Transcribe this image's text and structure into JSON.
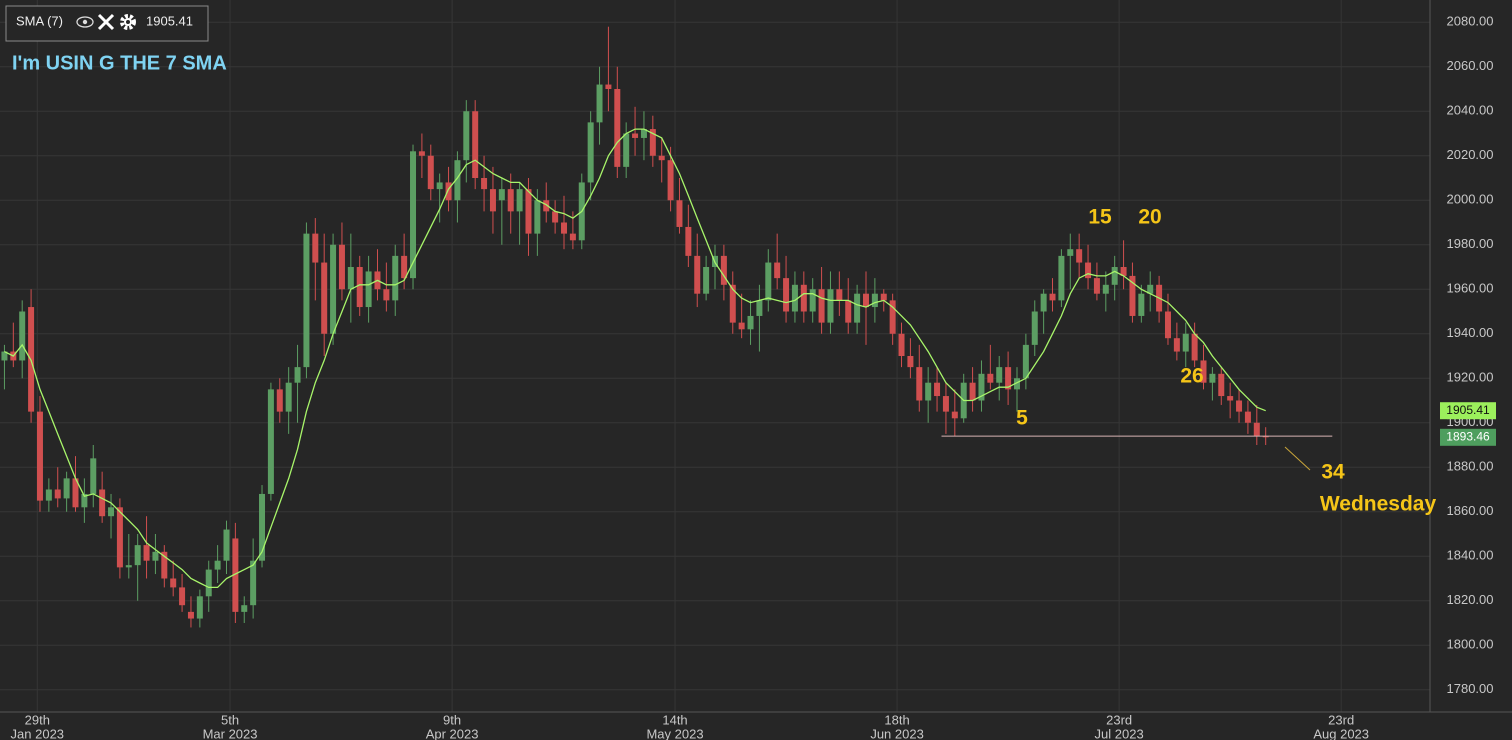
{
  "chart_data": {
    "type": "candlestick",
    "title": "I'm USIN G THE 7 SMA",
    "indicator": {
      "name": "SMA (7)",
      "value": 1905.41,
      "color": "#a8f56a",
      "values": [
        1932,
        1930,
        1935,
        1928,
        1915,
        1905,
        1895,
        1885,
        1875,
        1867,
        1868,
        1866,
        1864,
        1860,
        1856,
        1852,
        1846,
        1843,
        1840,
        1837,
        1834,
        1830,
        1828,
        1826,
        1826,
        1830,
        1832,
        1834,
        1836,
        1842,
        1853,
        1864,
        1875,
        1888,
        1905,
        1918,
        1928,
        1940,
        1950,
        1960,
        1962,
        1962,
        1964,
        1962,
        1962,
        1964,
        1972,
        1980,
        1988,
        1996,
        2005,
        2010,
        2016,
        2018,
        2015,
        2012,
        2010,
        2008,
        2008,
        2004,
        2000,
        1998,
        1995,
        1994,
        1992,
        1995,
        2002,
        2010,
        2020,
        2026,
        2030,
        2032,
        2032,
        2030,
        2028,
        2020,
        2012,
        2002,
        1992,
        1982,
        1972,
        1966,
        1960,
        1956,
        1954,
        1955,
        1956,
        1955,
        1954,
        1955,
        1958,
        1958,
        1956,
        1955,
        1955,
        1955,
        1953,
        1952,
        1954,
        1955,
        1952,
        1948,
        1944,
        1938,
        1932,
        1925,
        1918,
        1914,
        1910,
        1910,
        1912,
        1914,
        1916,
        1916,
        1918,
        1920,
        1926,
        1932,
        1940,
        1948,
        1958,
        1965,
        1967,
        1966,
        1966,
        1968,
        1966,
        1963,
        1960,
        1958,
        1956,
        1954,
        1950,
        1946,
        1940,
        1936,
        1930,
        1925,
        1920,
        1915,
        1911,
        1907,
        1905.41
      ]
    },
    "last_price": 1893.46,
    "support_level": 1894,
    "up_color": "#5c9e63",
    "down_color": "#d04f4f",
    "ohlc": [
      [
        1928,
        1935,
        1915,
        1932
      ],
      [
        1932,
        1945,
        1925,
        1928
      ],
      [
        1928,
        1955,
        1920,
        1950
      ],
      [
        1952,
        1960,
        1900,
        1905
      ],
      [
        1905,
        1912,
        1860,
        1865
      ],
      [
        1865,
        1875,
        1860,
        1870
      ],
      [
        1870,
        1880,
        1862,
        1866
      ],
      [
        1866,
        1878,
        1860,
        1875
      ],
      [
        1875,
        1885,
        1860,
        1862
      ],
      [
        1862,
        1875,
        1855,
        1868
      ],
      [
        1868,
        1890,
        1862,
        1884
      ],
      [
        1870,
        1878,
        1855,
        1858
      ],
      [
        1858,
        1868,
        1848,
        1862
      ],
      [
        1862,
        1866,
        1830,
        1835
      ],
      [
        1835,
        1850,
        1830,
        1836
      ],
      [
        1836,
        1850,
        1820,
        1845
      ],
      [
        1845,
        1858,
        1830,
        1838
      ],
      [
        1838,
        1850,
        1832,
        1842
      ],
      [
        1842,
        1845,
        1826,
        1830
      ],
      [
        1830,
        1838,
        1822,
        1826
      ],
      [
        1826,
        1832,
        1815,
        1818
      ],
      [
        1815,
        1822,
        1808,
        1812
      ],
      [
        1812,
        1825,
        1808,
        1822
      ],
      [
        1822,
        1838,
        1815,
        1834
      ],
      [
        1834,
        1845,
        1828,
        1838
      ],
      [
        1838,
        1856,
        1832,
        1852
      ],
      [
        1848,
        1855,
        1810,
        1815
      ],
      [
        1815,
        1822,
        1810,
        1818
      ],
      [
        1818,
        1848,
        1812,
        1838
      ],
      [
        1838,
        1872,
        1835,
        1868
      ],
      [
        1868,
        1918,
        1865,
        1915
      ],
      [
        1915,
        1920,
        1900,
        1905
      ],
      [
        1905,
        1925,
        1895,
        1918
      ],
      [
        1918,
        1935,
        1900,
        1925
      ],
      [
        1925,
        1990,
        1920,
        1985
      ],
      [
        1985,
        1992,
        1955,
        1972
      ],
      [
        1972,
        1985,
        1930,
        1940
      ],
      [
        1940,
        1985,
        1935,
        1980
      ],
      [
        1980,
        1990,
        1955,
        1960
      ],
      [
        1960,
        1985,
        1945,
        1970
      ],
      [
        1970,
        1975,
        1948,
        1952
      ],
      [
        1952,
        1975,
        1945,
        1968
      ],
      [
        1968,
        1978,
        1955,
        1960
      ],
      [
        1960,
        1972,
        1950,
        1955
      ],
      [
        1955,
        1980,
        1948,
        1975
      ],
      [
        1975,
        1985,
        1960,
        1965
      ],
      [
        1965,
        2025,
        1960,
        2022
      ],
      [
        2022,
        2030,
        2010,
        2020
      ],
      [
        2020,
        2025,
        2000,
        2005
      ],
      [
        2005,
        2012,
        1990,
        2008
      ],
      [
        2008,
        2015,
        1995,
        2000
      ],
      [
        2000,
        2022,
        1990,
        2018
      ],
      [
        2018,
        2045,
        2008,
        2040
      ],
      [
        2040,
        2045,
        2005,
        2010
      ],
      [
        2010,
        2020,
        1995,
        2005
      ],
      [
        2005,
        2015,
        1985,
        1995
      ],
      [
        2000,
        2010,
        1980,
        2005
      ],
      [
        2005,
        2012,
        1985,
        1995
      ],
      [
        1995,
        2008,
        1980,
        2005
      ],
      [
        2005,
        2010,
        1975,
        1985
      ],
      [
        1985,
        2005,
        1975,
        2000
      ],
      [
        2000,
        2008,
        1990,
        1995
      ],
      [
        1995,
        2000,
        1985,
        1990
      ],
      [
        1990,
        2002,
        1978,
        1985
      ],
      [
        1985,
        1995,
        1978,
        1982
      ],
      [
        1982,
        2012,
        1978,
        2008
      ],
      [
        2008,
        2040,
        2000,
        2035
      ],
      [
        2035,
        2060,
        2025,
        2052
      ],
      [
        2052,
        2078,
        2040,
        2050
      ],
      [
        2050,
        2060,
        2010,
        2015
      ],
      [
        2015,
        2035,
        2010,
        2030
      ],
      [
        2030,
        2042,
        2020,
        2028
      ],
      [
        2028,
        2040,
        2018,
        2032
      ],
      [
        2032,
        2038,
        2015,
        2020
      ],
      [
        2020,
        2028,
        2008,
        2018
      ],
      [
        2018,
        2024,
        1995,
        2000
      ],
      [
        2000,
        2010,
        1985,
        1988
      ],
      [
        1988,
        1998,
        1970,
        1975
      ],
      [
        1975,
        1985,
        1952,
        1958
      ],
      [
        1958,
        1975,
        1955,
        1970
      ],
      [
        1970,
        1980,
        1960,
        1975
      ],
      [
        1975,
        1980,
        1955,
        1962
      ],
      [
        1962,
        1968,
        1940,
        1945
      ],
      [
        1945,
        1958,
        1938,
        1942
      ],
      [
        1942,
        1955,
        1935,
        1948
      ],
      [
        1948,
        1962,
        1932,
        1955
      ],
      [
        1955,
        1978,
        1950,
        1972
      ],
      [
        1972,
        1985,
        1960,
        1965
      ],
      [
        1965,
        1975,
        1945,
        1950
      ],
      [
        1950,
        1968,
        1945,
        1962
      ],
      [
        1962,
        1968,
        1945,
        1950
      ],
      [
        1950,
        1965,
        1945,
        1960
      ],
      [
        1960,
        1970,
        1940,
        1945
      ],
      [
        1945,
        1968,
        1940,
        1960
      ],
      [
        1960,
        1968,
        1948,
        1955
      ],
      [
        1955,
        1965,
        1940,
        1945
      ],
      [
        1945,
        1962,
        1940,
        1958
      ],
      [
        1958,
        1968,
        1935,
        1952
      ],
      [
        1952,
        1965,
        1945,
        1958
      ],
      [
        1958,
        1960,
        1950,
        1955
      ],
      [
        1955,
        1958,
        1935,
        1940
      ],
      [
        1940,
        1945,
        1925,
        1930
      ],
      [
        1930,
        1938,
        1920,
        1925
      ],
      [
        1925,
        1935,
        1905,
        1910
      ],
      [
        1910,
        1925,
        1900,
        1918
      ],
      [
        1918,
        1925,
        1905,
        1912
      ],
      [
        1912,
        1918,
        1895,
        1905
      ],
      [
        1905,
        1915,
        1894,
        1902
      ],
      [
        1902,
        1922,
        1900,
        1918
      ],
      [
        1918,
        1925,
        1905,
        1910
      ],
      [
        1910,
        1928,
        1905,
        1922
      ],
      [
        1922,
        1935,
        1915,
        1918
      ],
      [
        1918,
        1930,
        1910,
        1925
      ],
      [
        1925,
        1932,
        1908,
        1915
      ],
      [
        1915,
        1925,
        1905,
        1920
      ],
      [
        1920,
        1940,
        1915,
        1935
      ],
      [
        1935,
        1955,
        1930,
        1950
      ],
      [
        1950,
        1960,
        1940,
        1958
      ],
      [
        1958,
        1965,
        1950,
        1955
      ],
      [
        1955,
        1978,
        1952,
        1975
      ],
      [
        1975,
        1985,
        1960,
        1978
      ],
      [
        1978,
        1985,
        1965,
        1972
      ],
      [
        1972,
        1980,
        1960,
        1965
      ],
      [
        1965,
        1972,
        1955,
        1958
      ],
      [
        1958,
        1968,
        1950,
        1962
      ],
      [
        1962,
        1975,
        1955,
        1970
      ],
      [
        1970,
        1982,
        1960,
        1966
      ],
      [
        1966,
        1972,
        1945,
        1948
      ],
      [
        1948,
        1962,
        1945,
        1958
      ],
      [
        1958,
        1968,
        1950,
        1962
      ],
      [
        1962,
        1966,
        1945,
        1950
      ],
      [
        1950,
        1958,
        1935,
        1938
      ],
      [
        1938,
        1945,
        1928,
        1932
      ],
      [
        1932,
        1945,
        1925,
        1940
      ],
      [
        1940,
        1945,
        1925,
        1928
      ],
      [
        1928,
        1935,
        1915,
        1918
      ],
      [
        1918,
        1925,
        1910,
        1922
      ],
      [
        1922,
        1925,
        1908,
        1912
      ],
      [
        1912,
        1918,
        1902,
        1910
      ],
      [
        1910,
        1915,
        1900,
        1905
      ],
      [
        1905,
        1910,
        1895,
        1900
      ],
      [
        1900,
        1908,
        1890,
        1894
      ],
      [
        1894,
        1898,
        1890,
        1893.46
      ]
    ],
    "xlim": [
      -0.5,
      160.5
    ],
    "xticks": [
      {
        "value": 3.7,
        "label": "29th",
        "sublabel": "Jan 2023"
      },
      {
        "value": 25.4,
        "label": "5th",
        "sublabel": "Mar 2023"
      },
      {
        "value": 50.4,
        "label": "9th",
        "sublabel": "Apr 2023"
      },
      {
        "value": 75.5,
        "label": "14th",
        "sublabel": "May 2023"
      },
      {
        "value": 100.5,
        "label": "18th",
        "sublabel": "Jun 2023"
      },
      {
        "value": 125.5,
        "label": "23rd",
        "sublabel": "Jul 2023"
      },
      {
        "value": 150.5,
        "label": "23rd",
        "sublabel": "Aug 2023"
      }
    ],
    "ylim": [
      1770,
      2090
    ],
    "yticks": [
      {
        "value": 1780,
        "label": "1780.00"
      },
      {
        "value": 1800,
        "label": "1800.00"
      },
      {
        "value": 1820,
        "label": "1820.00"
      },
      {
        "value": 1840,
        "label": "1840.00"
      },
      {
        "value": 1860,
        "label": "1860.00"
      },
      {
        "value": 1880,
        "label": "1880.00"
      },
      {
        "value": 1900,
        "label": "1900.00"
      },
      {
        "value": 1920,
        "label": "1920.00"
      },
      {
        "value": 1940,
        "label": "1940.00"
      },
      {
        "value": 1960,
        "label": "1960.00"
      },
      {
        "value": 1980,
        "label": "1980.00"
      },
      {
        "value": 2000,
        "label": "2000.00"
      },
      {
        "value": 2020,
        "label": "2020.00"
      },
      {
        "value": 2040,
        "label": "2040.00"
      },
      {
        "value": 2060,
        "label": "2060.00"
      },
      {
        "value": 2080,
        "label": "2080.00"
      }
    ],
    "annotations": [
      "15",
      "20",
      "26",
      "5",
      "34",
      "Wednesday"
    ],
    "grid": true
  }
}
